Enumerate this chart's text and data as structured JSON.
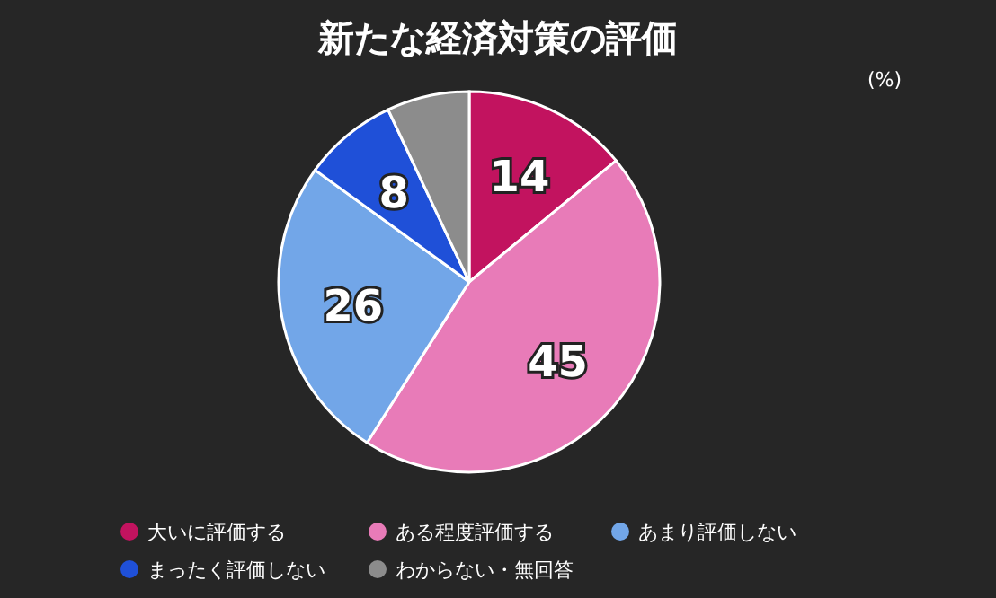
{
  "chart_data": {
    "type": "pie",
    "title": "新たな経済対策の評価",
    "categories": [
      "大いに評価する",
      "ある程度評価する",
      "あまり評価しない",
      "まったく評価しない",
      "わからない・無回答"
    ],
    "values": [
      14,
      45,
      26,
      8,
      7
    ],
    "colors": [
      "#c2135f",
      "#e87bb8",
      "#72a6e8",
      "#1f50d8",
      "#8c8c8c"
    ],
    "value_labels": [
      "14",
      "45",
      "26",
      "8",
      null
    ],
    "legend": "bottom",
    "annotations": [
      "(%)"
    ]
  }
}
